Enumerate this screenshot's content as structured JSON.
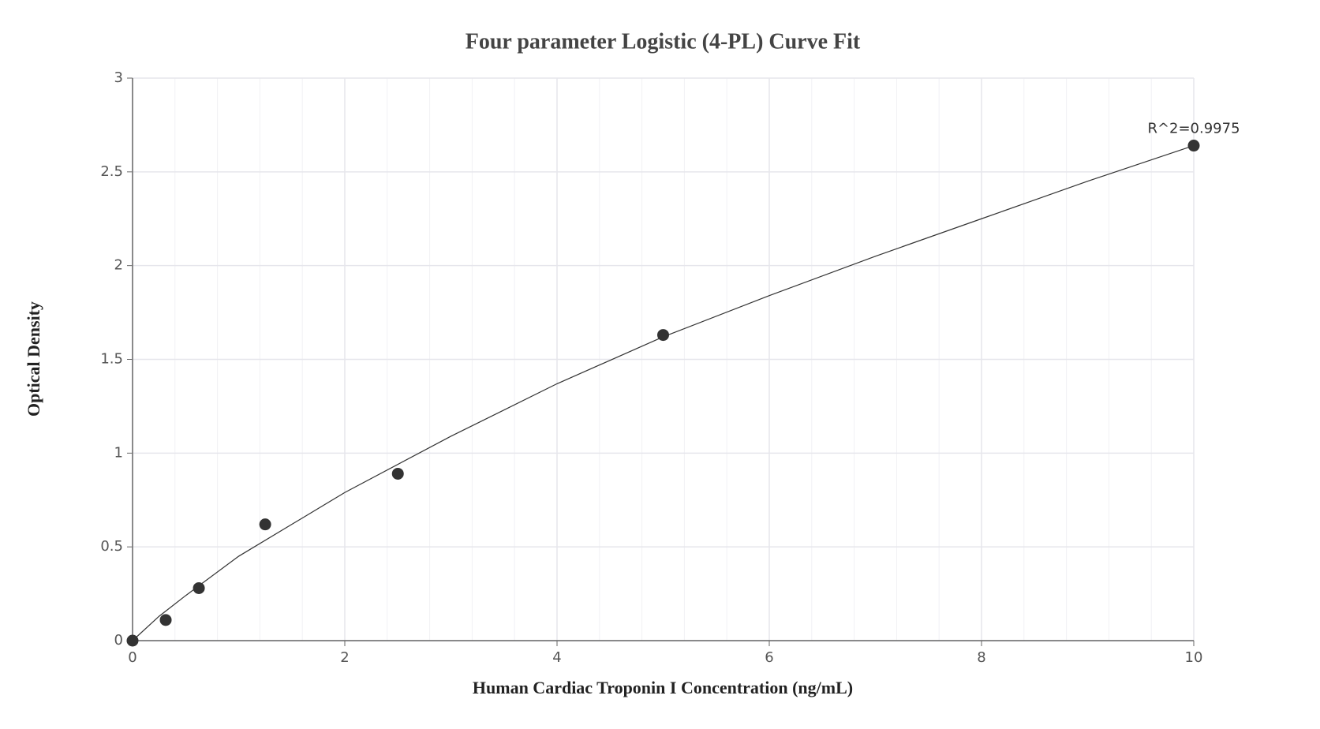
{
  "chart_data": {
    "type": "scatter",
    "title": "Four parameter Logistic (4-PL) Curve Fit",
    "x_label": "Human Cardiac Troponin I Concentration (ng/mL)",
    "y_label": "Optical Density",
    "annotation": "R^2=0.9975",
    "x": [
      0,
      0.3125,
      0.625,
      1.25,
      2.5,
      5,
      10
    ],
    "values": [
      0,
      0.11,
      0.28,
      0.62,
      0.89,
      1.63,
      2.64
    ],
    "color": "#333333",
    "fit_curve": {
      "x": [
        0,
        0.25,
        0.5,
        1,
        1.5,
        2,
        3,
        4,
        5,
        6,
        7,
        8,
        9,
        10
      ],
      "values": [
        0,
        0.13,
        0.24,
        0.45,
        0.62,
        0.79,
        1.09,
        1.37,
        1.62,
        1.84,
        2.05,
        2.25,
        2.45,
        2.64
      ],
      "color": "#333333"
    },
    "xlim": [
      0,
      10
    ],
    "xticks": [
      0,
      2,
      4,
      6,
      8,
      10
    ],
    "xminor_ticks": [
      0.4,
      0.8,
      1.2,
      1.6,
      2.4,
      2.8,
      3.2,
      3.6,
      4.4,
      4.8,
      5.2,
      5.6,
      6.4,
      6.8,
      7.2,
      7.6,
      8.4,
      8.8,
      9.2,
      9.6
    ],
    "ylim": [
      0,
      3
    ],
    "yticks": [
      0,
      0.5,
      1,
      1.5,
      2,
      2.5,
      3
    ],
    "grid": true
  }
}
